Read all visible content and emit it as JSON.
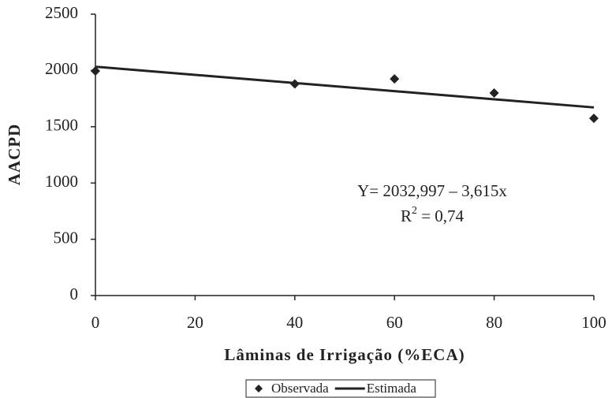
{
  "chart_data": {
    "type": "scatter",
    "xlabel": "Lâminas de Irrigação (%ECA)",
    "ylabel": "AACPD",
    "equation": "Y= 2032,997 – 3,615x",
    "r_squared": [
      "R",
      "2",
      " = 0,74"
    ],
    "series": [
      {
        "name": "Observada",
        "mode": "markers",
        "color": "#222222",
        "x": [
          0,
          40,
          60,
          80,
          100
        ],
        "values": [
          1995,
          1880,
          1925,
          1800,
          1575
        ]
      },
      {
        "name": "Estimada",
        "mode": "line",
        "color": "#222222",
        "x": [
          0,
          100
        ],
        "values": [
          2032.997,
          1671.497
        ]
      }
    ],
    "xlim": [
      0,
      100
    ],
    "xticks": [
      0,
      20,
      40,
      60,
      80,
      100
    ],
    "ylim": [
      0,
      2500
    ],
    "yticks": [
      0,
      500,
      1000,
      1500,
      2000,
      2500
    ],
    "grid": false,
    "legend": "bottom"
  }
}
